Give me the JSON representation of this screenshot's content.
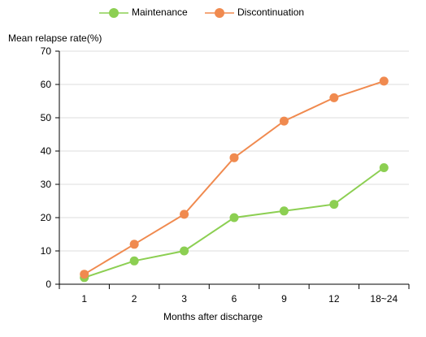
{
  "chart_data": {
    "type": "line",
    "categories": [
      "1",
      "2",
      "3",
      "6",
      "9",
      "12",
      "18~24"
    ],
    "series": [
      {
        "name": "Maintenance",
        "values": [
          2,
          7,
          10,
          20,
          22,
          24,
          35
        ],
        "color": "#8ccf52"
      },
      {
        "name": "Discontinuation",
        "values": [
          3,
          12,
          21,
          38,
          49,
          56,
          61
        ],
        "color": "#f08a4f"
      }
    ],
    "title": "",
    "xlabel": "Months after discharge",
    "ylabel": "Mean relapse rate(%)",
    "ylim": [
      0,
      70
    ],
    "yticks": [
      0,
      10,
      20,
      30,
      40,
      50,
      60,
      70
    ],
    "grid": true,
    "legend_position": "top-center"
  }
}
